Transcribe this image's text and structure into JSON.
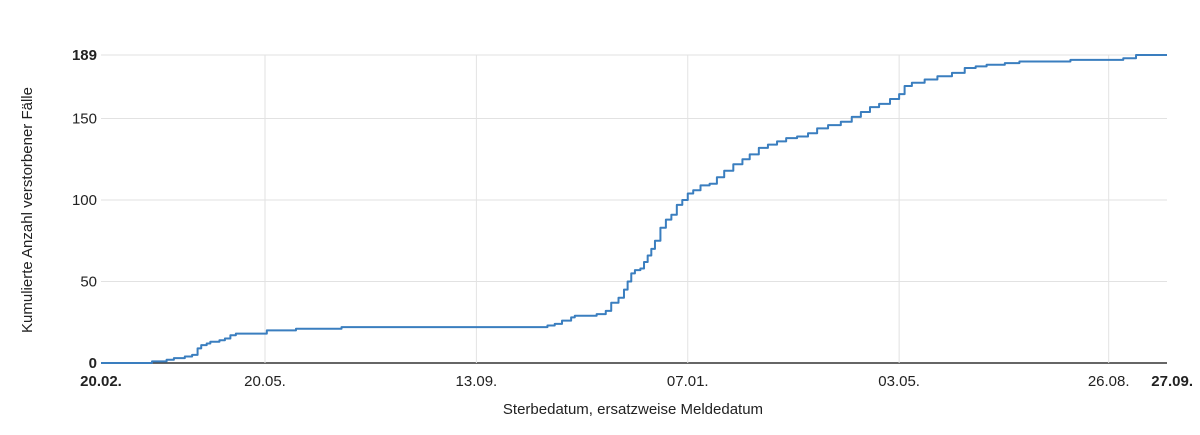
{
  "chart_data": {
    "type": "line",
    "xlabel": "Sterbedatum, ersatzweise Meldedatum",
    "ylabel": "Kumulierte Anzahl verstorbener Fälle",
    "ylim": [
      0,
      189
    ],
    "xlim": [
      "2020-02-20",
      "2021-09-27"
    ],
    "grid": true,
    "y_ticks": [
      {
        "value": 0,
        "label": "0",
        "bold": true
      },
      {
        "value": 50,
        "label": "50",
        "bold": false
      },
      {
        "value": 100,
        "label": "100",
        "bold": false
      },
      {
        "value": 150,
        "label": "150",
        "bold": false
      },
      {
        "value": 189,
        "label": "189",
        "bold": true
      }
    ],
    "x_ticks": [
      {
        "date": "2020-02-20",
        "label": "20.02.",
        "bold": true
      },
      {
        "date": "2020-05-20",
        "label": "20.05.",
        "bold": false
      },
      {
        "date": "2020-09-13",
        "label": "13.09.",
        "bold": false
      },
      {
        "date": "2021-01-07",
        "label": "07.01.",
        "bold": false
      },
      {
        "date": "2021-05-03",
        "label": "03.05.",
        "bold": false
      },
      {
        "date": "2021-08-26",
        "label": "26.08.",
        "bold": false
      },
      {
        "date": "2021-09-27",
        "label": "27.09.",
        "bold": true
      }
    ],
    "series": [
      {
        "color": "#3a7ebf",
        "points": [
          [
            "2020-02-20",
            0
          ],
          [
            "2020-03-18",
            0
          ],
          [
            "2020-03-19",
            1
          ],
          [
            "2020-03-26",
            1
          ],
          [
            "2020-03-27",
            2
          ],
          [
            "2020-03-31",
            3
          ],
          [
            "2020-04-06",
            4
          ],
          [
            "2020-04-10",
            5
          ],
          [
            "2020-04-13",
            9
          ],
          [
            "2020-04-15",
            11
          ],
          [
            "2020-04-18",
            12
          ],
          [
            "2020-04-20",
            13
          ],
          [
            "2020-04-25",
            14
          ],
          [
            "2020-04-28",
            15
          ],
          [
            "2020-05-01",
            17
          ],
          [
            "2020-05-04",
            18
          ],
          [
            "2020-05-20",
            18
          ],
          [
            "2020-05-21",
            20
          ],
          [
            "2020-06-05",
            20
          ],
          [
            "2020-06-06",
            21
          ],
          [
            "2020-06-30",
            21
          ],
          [
            "2020-07-01",
            22
          ],
          [
            "2020-10-19",
            22
          ],
          [
            "2020-10-22",
            23
          ],
          [
            "2020-10-26",
            24
          ],
          [
            "2020-10-30",
            26
          ],
          [
            "2020-11-04",
            28
          ],
          [
            "2020-11-06",
            29
          ],
          [
            "2020-11-15",
            29
          ],
          [
            "2020-11-18",
            30
          ],
          [
            "2020-11-23",
            32
          ],
          [
            "2020-11-26",
            37
          ],
          [
            "2020-11-30",
            40
          ],
          [
            "2020-12-03",
            45
          ],
          [
            "2020-12-05",
            50
          ],
          [
            "2020-12-07",
            55
          ],
          [
            "2020-12-09",
            57
          ],
          [
            "2020-12-12",
            58
          ],
          [
            "2020-12-14",
            62
          ],
          [
            "2020-12-16",
            66
          ],
          [
            "2020-12-18",
            70
          ],
          [
            "2020-12-20",
            75
          ],
          [
            "2020-12-23",
            83
          ],
          [
            "2020-12-26",
            88
          ],
          [
            "2020-12-29",
            91
          ],
          [
            "2021-01-01",
            97
          ],
          [
            "2021-01-04",
            100
          ],
          [
            "2021-01-07",
            104
          ],
          [
            "2021-01-10",
            106
          ],
          [
            "2021-01-14",
            109
          ],
          [
            "2021-01-19",
            110
          ],
          [
            "2021-01-23",
            114
          ],
          [
            "2021-01-27",
            118
          ],
          [
            "2021-02-01",
            122
          ],
          [
            "2021-02-06",
            125
          ],
          [
            "2021-02-10",
            128
          ],
          [
            "2021-02-15",
            132
          ],
          [
            "2021-02-20",
            134
          ],
          [
            "2021-02-25",
            136
          ],
          [
            "2021-03-02",
            138
          ],
          [
            "2021-03-08",
            139
          ],
          [
            "2021-03-14",
            141
          ],
          [
            "2021-03-19",
            144
          ],
          [
            "2021-03-25",
            146
          ],
          [
            "2021-04-01",
            148
          ],
          [
            "2021-04-07",
            151
          ],
          [
            "2021-04-12",
            154
          ],
          [
            "2021-04-17",
            157
          ],
          [
            "2021-04-22",
            159
          ],
          [
            "2021-04-28",
            162
          ],
          [
            "2021-05-03",
            165
          ],
          [
            "2021-05-06",
            170
          ],
          [
            "2021-05-10",
            172
          ],
          [
            "2021-05-17",
            174
          ],
          [
            "2021-05-24",
            176
          ],
          [
            "2021-06-01",
            178
          ],
          [
            "2021-06-08",
            181
          ],
          [
            "2021-06-14",
            182
          ],
          [
            "2021-06-20",
            183
          ],
          [
            "2021-06-30",
            184
          ],
          [
            "2021-07-08",
            185
          ],
          [
            "2021-08-01",
            185
          ],
          [
            "2021-08-05",
            186
          ],
          [
            "2021-09-02",
            186
          ],
          [
            "2021-09-03",
            187
          ],
          [
            "2021-09-09",
            187
          ],
          [
            "2021-09-10",
            189
          ],
          [
            "2021-09-27",
            189
          ]
        ]
      }
    ]
  }
}
